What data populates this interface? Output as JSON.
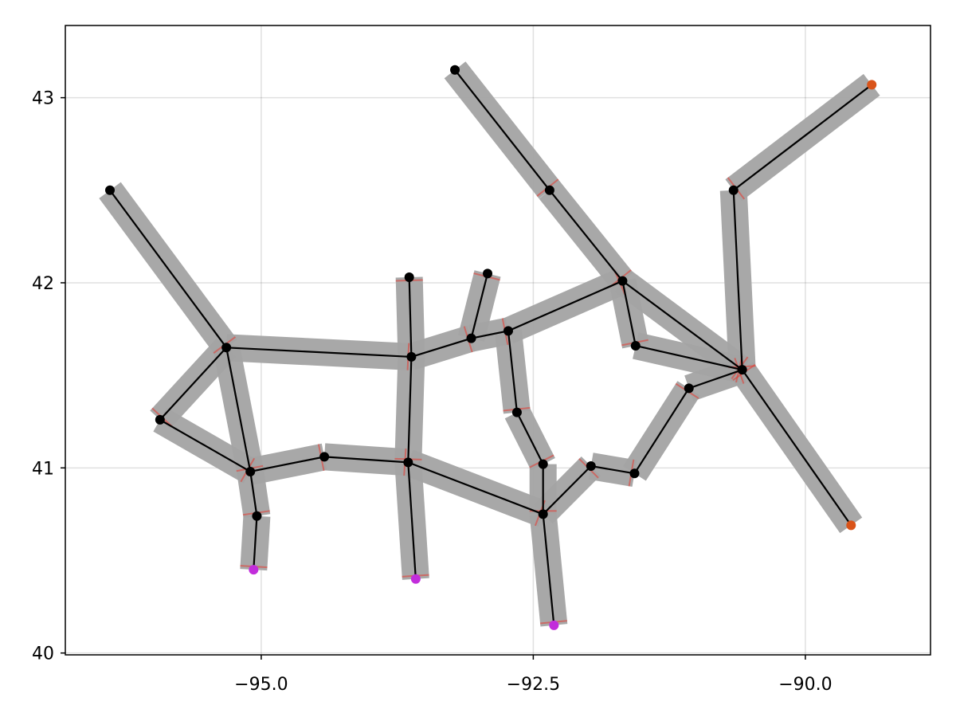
{
  "chart_data": {
    "type": "network",
    "title": "",
    "xlabel": "",
    "ylabel": "",
    "xlim": [
      -96.8,
      -88.85
    ],
    "ylim": [
      39.99,
      43.39
    ],
    "grid": true,
    "xticks": [
      -95.0,
      -92.5,
      -90.0
    ],
    "xtick_labels": [
      "−95.0",
      "−92.5",
      "−90.0"
    ],
    "yticks": [
      40,
      41,
      42,
      43
    ],
    "ytick_labels": [
      "40",
      "41",
      "42",
      "43"
    ],
    "colors": {
      "node": "#000000",
      "edge": "#000000",
      "band": "#a3a3a3",
      "flow": "#e8392f",
      "source": "#d95319",
      "sink": "#c22ddb"
    },
    "nodes": [
      {
        "id": "n1",
        "x": -96.39,
        "y": 42.5,
        "kind": "node"
      },
      {
        "id": "n2",
        "x": -95.32,
        "y": 41.65,
        "kind": "node"
      },
      {
        "id": "n3",
        "x": -95.93,
        "y": 41.26,
        "kind": "node"
      },
      {
        "id": "n4",
        "x": -95.1,
        "y": 40.98,
        "kind": "node"
      },
      {
        "id": "n5",
        "x": -95.04,
        "y": 40.74,
        "kind": "node"
      },
      {
        "id": "n6",
        "x": -95.07,
        "y": 40.45,
        "kind": "sink"
      },
      {
        "id": "n7",
        "x": -94.42,
        "y": 41.06,
        "kind": "node"
      },
      {
        "id": "n8",
        "x": -93.62,
        "y": 41.6,
        "kind": "node"
      },
      {
        "id": "n9",
        "x": -93.64,
        "y": 42.03,
        "kind": "node"
      },
      {
        "id": "n10",
        "x": -93.65,
        "y": 41.03,
        "kind": "node"
      },
      {
        "id": "n11",
        "x": -93.58,
        "y": 40.4,
        "kind": "sink"
      },
      {
        "id": "n12",
        "x": -93.07,
        "y": 41.7,
        "kind": "node"
      },
      {
        "id": "n13",
        "x": -92.92,
        "y": 42.05,
        "kind": "node"
      },
      {
        "id": "n14",
        "x": -92.73,
        "y": 41.74,
        "kind": "node"
      },
      {
        "id": "n15",
        "x": -92.65,
        "y": 41.3,
        "kind": "node"
      },
      {
        "id": "n16",
        "x": -92.41,
        "y": 41.02,
        "kind": "node"
      },
      {
        "id": "n17",
        "x": -92.41,
        "y": 40.75,
        "kind": "node"
      },
      {
        "id": "n18",
        "x": -92.31,
        "y": 40.15,
        "kind": "sink"
      },
      {
        "id": "n19",
        "x": -91.97,
        "y": 41.01,
        "kind": "node"
      },
      {
        "id": "n20",
        "x": -91.57,
        "y": 40.97,
        "kind": "node"
      },
      {
        "id": "n21",
        "x": -91.07,
        "y": 41.43,
        "kind": "node"
      },
      {
        "id": "n22",
        "x": -90.58,
        "y": 41.53,
        "kind": "node"
      },
      {
        "id": "n23",
        "x": -91.56,
        "y": 41.66,
        "kind": "node"
      },
      {
        "id": "n24",
        "x": -91.68,
        "y": 42.01,
        "kind": "node"
      },
      {
        "id": "n25",
        "x": -92.35,
        "y": 42.5,
        "kind": "node"
      },
      {
        "id": "n26",
        "x": -93.22,
        "y": 43.15,
        "kind": "node"
      },
      {
        "id": "n27",
        "x": -90.66,
        "y": 42.5,
        "kind": "node"
      },
      {
        "id": "n28",
        "x": -89.39,
        "y": 43.07,
        "kind": "source"
      },
      {
        "id": "n29",
        "x": -89.58,
        "y": 40.69,
        "kind": "source"
      }
    ],
    "edges": [
      {
        "from": "n1",
        "to": "n2"
      },
      {
        "from": "n2",
        "to": "n3"
      },
      {
        "from": "n2",
        "to": "n8"
      },
      {
        "from": "n2",
        "to": "n4"
      },
      {
        "from": "n3",
        "to": "n4"
      },
      {
        "from": "n4",
        "to": "n7"
      },
      {
        "from": "n4",
        "to": "n5"
      },
      {
        "from": "n5",
        "to": "n6"
      },
      {
        "from": "n7",
        "to": "n10"
      },
      {
        "from": "n8",
        "to": "n9"
      },
      {
        "from": "n8",
        "to": "n10"
      },
      {
        "from": "n8",
        "to": "n12"
      },
      {
        "from": "n10",
        "to": "n11"
      },
      {
        "from": "n10",
        "to": "n17"
      },
      {
        "from": "n12",
        "to": "n13"
      },
      {
        "from": "n12",
        "to": "n14"
      },
      {
        "from": "n14",
        "to": "n24"
      },
      {
        "from": "n14",
        "to": "n15"
      },
      {
        "from": "n15",
        "to": "n16"
      },
      {
        "from": "n16",
        "to": "n17"
      },
      {
        "from": "n17",
        "to": "n18"
      },
      {
        "from": "n17",
        "to": "n19"
      },
      {
        "from": "n19",
        "to": "n20"
      },
      {
        "from": "n20",
        "to": "n21"
      },
      {
        "from": "n21",
        "to": "n22"
      },
      {
        "from": "n23",
        "to": "n22"
      },
      {
        "from": "n24",
        "to": "n23"
      },
      {
        "from": "n24",
        "to": "n22"
      },
      {
        "from": "n26",
        "to": "n25"
      },
      {
        "from": "n25",
        "to": "n24"
      },
      {
        "from": "n27",
        "to": "n22"
      },
      {
        "from": "n28",
        "to": "n27"
      },
      {
        "from": "n29",
        "to": "n22"
      }
    ]
  }
}
